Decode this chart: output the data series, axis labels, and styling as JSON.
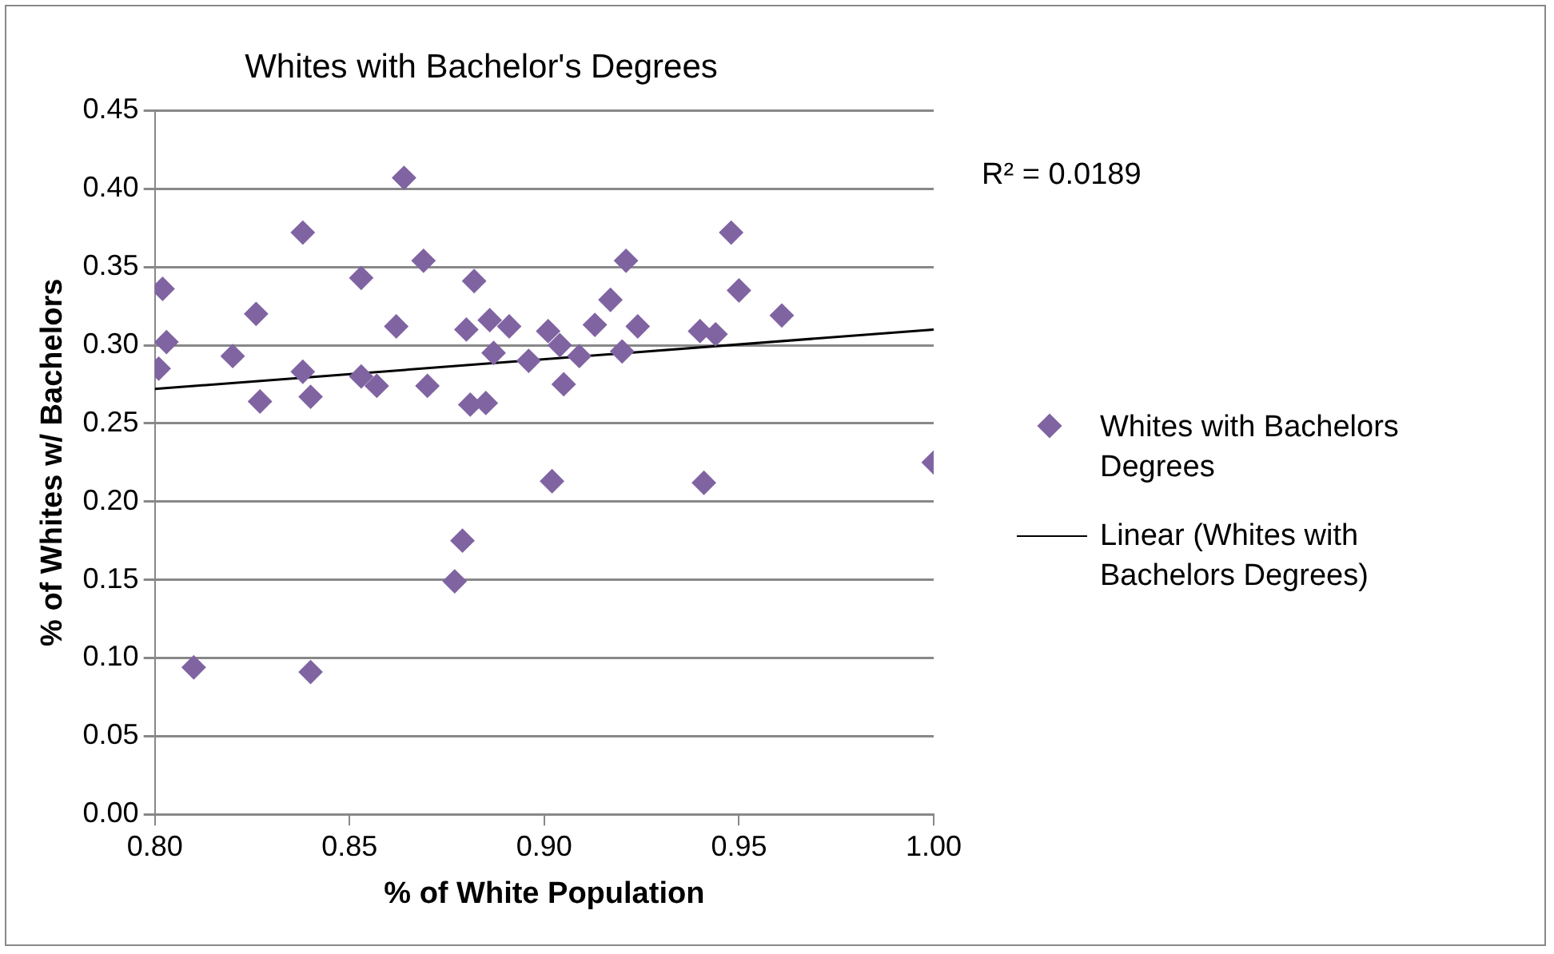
{
  "chart_data": {
    "type": "scatter",
    "title": "Whites with Bachelor's Degrees",
    "xlabel": "% of White Population",
    "ylabel": "% of Whites w/ Bachelors",
    "xlim": [
      0.8,
      1.0
    ],
    "xticks": [
      {
        "value": 0.8,
        "label": "0.80"
      },
      {
        "value": 0.85,
        "label": "0.85"
      },
      {
        "value": 0.9,
        "label": "0.90"
      },
      {
        "value": 0.95,
        "label": "0.95"
      },
      {
        "value": 1.0,
        "label": "1.00"
      }
    ],
    "ylim": [
      0,
      0.45
    ],
    "yticks": [
      {
        "value": 0,
        "label": "0.00"
      },
      {
        "value": 0.05,
        "label": "0.05"
      },
      {
        "value": 0.1,
        "label": "0.10"
      },
      {
        "value": 0.15,
        "label": "0.15"
      },
      {
        "value": 0.2,
        "label": "0.20"
      },
      {
        "value": 0.25,
        "label": "0.25"
      },
      {
        "value": 0.3,
        "label": "0.30"
      },
      {
        "value": 0.35,
        "label": "0.35"
      },
      {
        "value": 0.4,
        "label": "0.40"
      },
      {
        "value": 0.45,
        "label": "0.45"
      }
    ],
    "grid": "y",
    "legend": "right",
    "annotations": [
      "R² = 0.0189"
    ],
    "series": [
      {
        "name": "Whites with Bachelors Degrees",
        "marker": "diamond",
        "color": "#8064a2",
        "x": [
          0.801,
          0.802,
          0.803,
          0.81,
          0.82,
          0.826,
          0.827,
          0.838,
          0.838,
          0.84,
          0.84,
          0.853,
          0.853,
          0.857,
          0.862,
          0.864,
          0.869,
          0.87,
          0.877,
          0.879,
          0.88,
          0.881,
          0.882,
          0.885,
          0.886,
          0.887,
          0.891,
          0.896,
          0.901,
          0.902,
          0.904,
          0.905,
          0.909,
          0.913,
          0.917,
          0.92,
          0.921,
          0.924,
          0.94,
          0.941,
          0.944,
          0.948,
          0.95,
          0.961,
          1.0
        ],
        "values": [
          0.285,
          0.336,
          0.302,
          0.094,
          0.293,
          0.32,
          0.264,
          0.372,
          0.283,
          0.267,
          0.091,
          0.343,
          0.28,
          0.274,
          0.312,
          0.407,
          0.354,
          0.274,
          0.149,
          0.175,
          0.31,
          0.262,
          0.341,
          0.263,
          0.316,
          0.295,
          0.312,
          0.29,
          0.309,
          0.213,
          0.3,
          0.275,
          0.293,
          0.313,
          0.329,
          0.296,
          0.354,
          0.312,
          0.309,
          0.212,
          0.307,
          0.372,
          0.335,
          0.319,
          0.225
        ]
      },
      {
        "name": "Linear (Whites with Bachelors Degrees)",
        "type": "line",
        "marker": "none",
        "line_style": "solid",
        "color": "#000000",
        "x": [
          0.8,
          1.0
        ],
        "values": [
          0.272,
          0.31
        ]
      }
    ]
  }
}
